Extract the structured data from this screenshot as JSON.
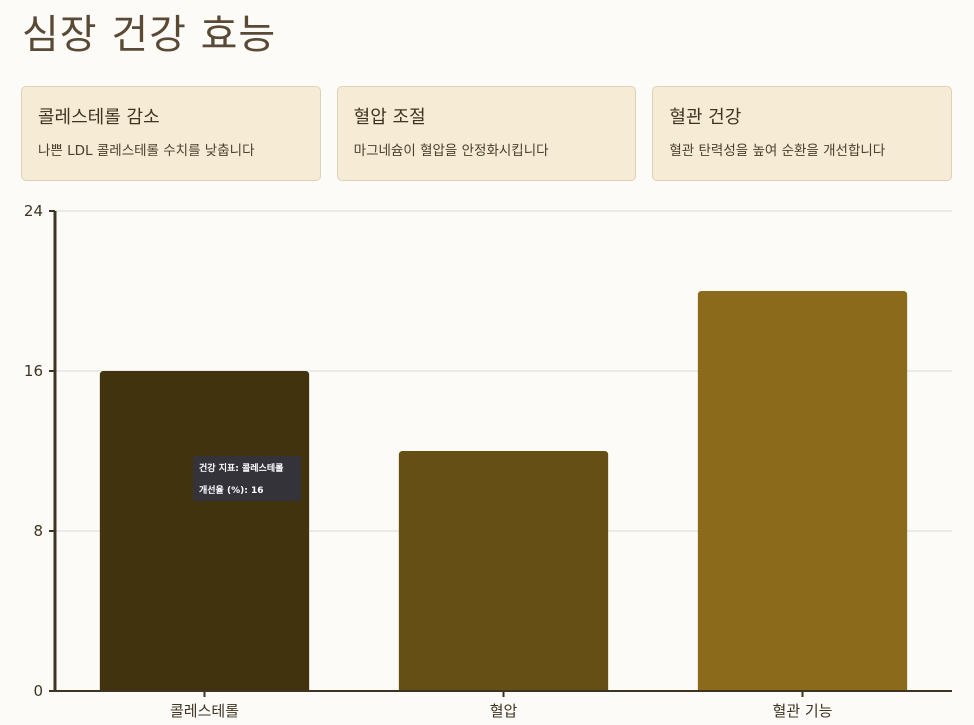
{
  "page": {
    "title": "심장 건강 효능"
  },
  "cards": [
    {
      "title": "콜레스테롤 감소",
      "description": "나쁜 LDL 콜레스테롤 수치를 낮춥니다"
    },
    {
      "title": "혈압 조절",
      "description": "마그네슘이 혈압을 안정화시킵니다"
    },
    {
      "title": "혈관 건강",
      "description": "혈관 탄력성을 높여 순환을 개선합니다"
    }
  ],
  "colors": {
    "background": "#fdfbf7",
    "card_bg": "#f6ebd5",
    "bars": [
      "#40330e",
      "#664f15",
      "#8c6a1b"
    ],
    "grid": "#d8d8d8",
    "axis": "#3e3422"
  },
  "chart_data": {
    "type": "bar",
    "categories": [
      "콜레스테롤",
      "혈압",
      "혈관 기능"
    ],
    "values": [
      16,
      12,
      20
    ],
    "yticks": [
      0,
      8,
      16,
      24
    ],
    "ylim": [
      0,
      24
    ],
    "title": "",
    "xlabel": "",
    "ylabel": "",
    "grid": true
  },
  "tooltip": {
    "line1": "건강 지표: 콜레스테롤",
    "line2": "개선율 (%): 16"
  }
}
